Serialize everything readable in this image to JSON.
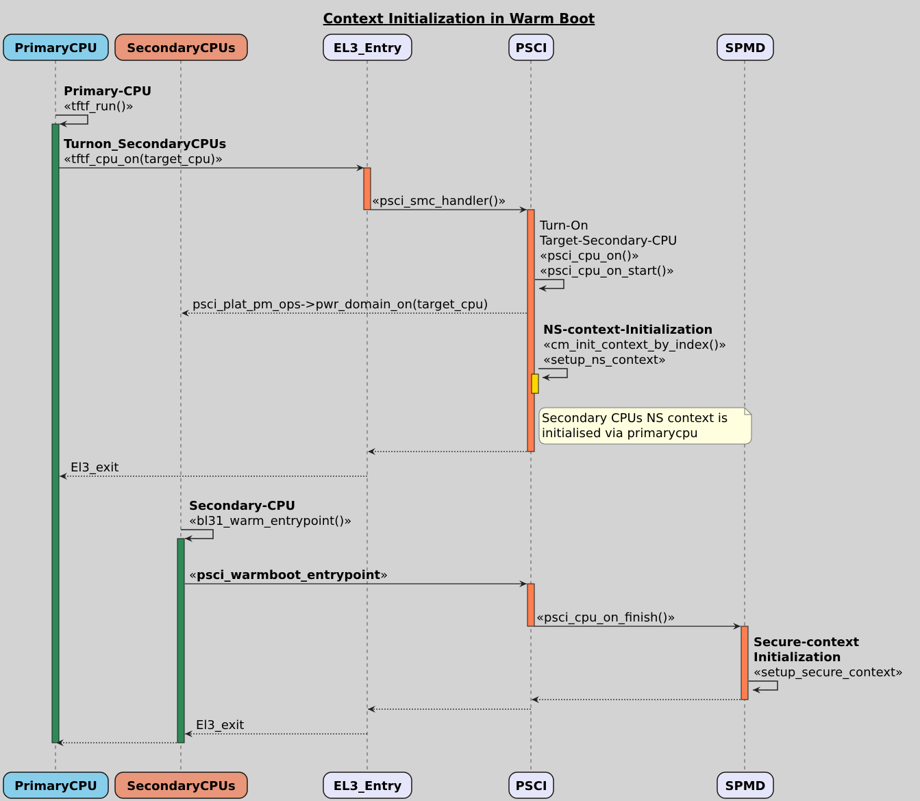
{
  "title_words": [
    "Context",
    "Initialization",
    "in",
    "Warm",
    "Boot"
  ],
  "participants": [
    {
      "name": "PrimaryCPU",
      "color": "#87CEEB"
    },
    {
      "name": "SecondaryCPUs",
      "color": "#E9967A"
    },
    {
      "name": "EL3_Entry",
      "color": "#E6E6FA"
    },
    {
      "name": "PSCI",
      "color": "#E6E6FA"
    },
    {
      "name": "SPMD",
      "color": "#E6E6FA"
    }
  ],
  "colors": {
    "background": "#D3D3D3",
    "activation_green": "#2E8B57",
    "activation_orange": "#FF7F50",
    "activation_yellow": "#FFD700",
    "note_fill": "#FFFFE0"
  },
  "messages": [
    {
      "from": "PrimaryCPU",
      "to": "PrimaryCPU",
      "style": "solid",
      "lines": [
        [
          {
            "t": "Primary-CPU",
            "b": true
          }
        ],
        [
          {
            "t": "«tftf_run()»"
          }
        ]
      ]
    },
    {
      "from": "PrimaryCPU",
      "to": "EL3_Entry",
      "style": "solid",
      "lines": [
        [
          {
            "t": "Turnon_SecondaryCPUs",
            "b": true
          }
        ],
        [
          {
            "t": "«tftf_cpu_on(target_cpu)»"
          }
        ]
      ]
    },
    {
      "from": "EL3_Entry",
      "to": "PSCI",
      "style": "solid",
      "lines": [
        [
          {
            "t": "«psci_smc_handler()»"
          }
        ]
      ]
    },
    {
      "from": "PSCI",
      "to": "PSCI",
      "style": "solid",
      "lines": [
        [
          {
            "t": "Turn-On"
          }
        ],
        [
          {
            "t": "Target-Secondary-CPU"
          }
        ],
        [
          {
            "t": "«psci_cpu_on()»"
          }
        ],
        [
          {
            "t": "«psci_cpu_on_start()»"
          }
        ]
      ]
    },
    {
      "from": "PSCI",
      "to": "SecondaryCPUs",
      "style": "dotted",
      "lines": [
        [
          {
            "t": "psci_plat_pm_ops->pwr_domain_on(target_cpu)"
          }
        ]
      ]
    },
    {
      "from": "PSCI",
      "to": "PSCI",
      "style": "solid",
      "lines": [
        [
          {
            "t": "NS-context-Initialization",
            "b": true
          }
        ],
        [
          {
            "t": "«cm_init_context_by_index()»"
          }
        ],
        [
          {
            "t": "«setup_ns_context»"
          }
        ]
      ]
    },
    {
      "from": "PSCI",
      "to": "EL3_Entry",
      "style": "dotted",
      "lines": []
    },
    {
      "from": "EL3_Entry",
      "to": "PrimaryCPU",
      "style": "dotted",
      "lines": [
        [
          {
            "t": "El3_exit"
          }
        ]
      ]
    },
    {
      "from": "SecondaryCPUs",
      "to": "SecondaryCPUs",
      "style": "solid",
      "lines": [
        [
          {
            "t": "Secondary-CPU",
            "b": true
          }
        ],
        [
          {
            "t": "«bl31_warm_entrypoint()»"
          }
        ]
      ]
    },
    {
      "from": "SecondaryCPUs",
      "to": "PSCI",
      "style": "solid",
      "lines": [
        [
          {
            "t": "«"
          },
          {
            "t": "psci_warmboot_entrypoint",
            "b": true
          },
          {
            "t": "»"
          }
        ]
      ]
    },
    {
      "from": "PSCI",
      "to": "SPMD",
      "style": "solid",
      "lines": [
        [
          {
            "t": "«psci_cpu_on_finish()»"
          }
        ]
      ]
    },
    {
      "from": "SPMD",
      "to": "SPMD",
      "style": "solid",
      "lines": [
        [
          {
            "t": "Secure-context",
            "b": true
          }
        ],
        [
          {
            "t": "Initialization",
            "b": true
          }
        ],
        [
          {
            "t": "«setup_secure_context»"
          }
        ]
      ]
    },
    {
      "from": "SPMD",
      "to": "PSCI",
      "style": "dotted",
      "lines": []
    },
    {
      "from": "PSCI",
      "to": "EL3_Entry",
      "style": "dotted",
      "lines": []
    },
    {
      "from": "EL3_Entry",
      "to": "SecondaryCPUs",
      "style": "dotted",
      "lines": [
        [
          {
            "t": "El3_exit"
          }
        ]
      ]
    },
    {
      "from": "SecondaryCPUs",
      "to": "PrimaryCPU",
      "style": "dotted",
      "lines": []
    }
  ],
  "note": {
    "lines": [
      "Secondary CPUs NS context is",
      "initialised via primarycpu"
    ]
  }
}
